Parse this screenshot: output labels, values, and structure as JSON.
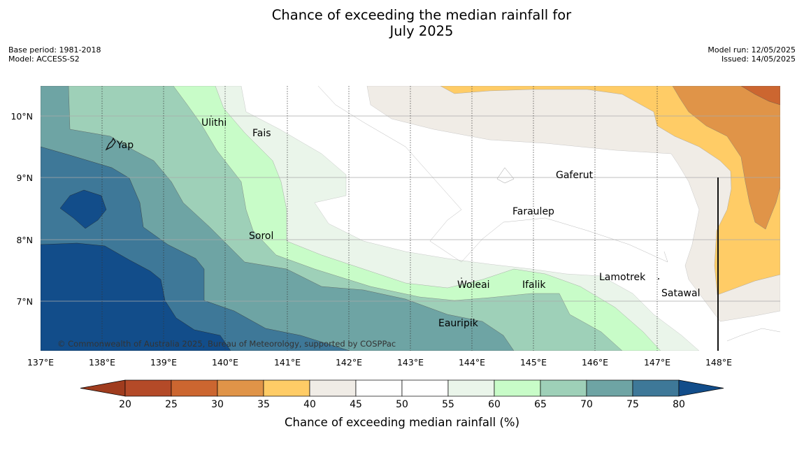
{
  "title_line1": "Chance of exceeding the median rainfall for",
  "title_line2": "July 2025",
  "meta": {
    "base_period": "Base period: 1981-2018",
    "model": "Model: ACCESS-S2",
    "model_run": "Model run: 12/05/2025",
    "issued": "Issued: 14/05/2025"
  },
  "copyright": "© Commonwealth of Australia 2025, Bureau of Meteorology, supported by COSPPac",
  "lon_ticks": [
    "137°E",
    "138°E",
    "139°E",
    "140°E",
    "141°E",
    "142°E",
    "143°E",
    "144°E",
    "145°E",
    "146°E",
    "147°E",
    "148°E"
  ],
  "lat_ticks": [
    "10°N",
    "9°N",
    "8°N",
    "7°N"
  ],
  "places": {
    "yap": "Yap",
    "ulithi": "Ulithi",
    "fais": "Fais",
    "gaferut": "Gaferut",
    "faraulep": "Faraulep",
    "sorol": "Sorol",
    "lamotrek": "Lamotrek",
    "woleai": "Woleai",
    "ifalik": "Ifalik",
    "satawal": "Satawal",
    "eauripik": "Eauripik"
  },
  "colorbar": {
    "label": "Chance of exceeding median rainfall (%)",
    "ticks": [
      "20",
      "25",
      "30",
      "35",
      "40",
      "45",
      "50",
      "55",
      "60",
      "65",
      "70",
      "75",
      "80"
    ],
    "colors": [
      "#a03c1e",
      "#b44a28",
      "#cc6630",
      "#e09448",
      "#ffcc66",
      "#f0ece6",
      "#ffffff",
      "#ffffff",
      "#eaf5ea",
      "#c8fcc8",
      "#9ed0b8",
      "#6ea4a4",
      "#3e7898",
      "#124d8a"
    ]
  }
}
